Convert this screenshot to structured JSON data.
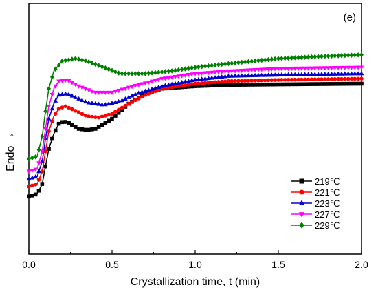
{
  "chart_data": {
    "type": "line",
    "panel_label": "(e)",
    "xlabel": "Crystallization time, t (min)",
    "ylabel": "Endo →",
    "xlim": [
      0,
      2.0
    ],
    "xticks": [
      "0.0",
      "0.5",
      "1.0",
      "1.5",
      "2.0"
    ],
    "ylim": [
      0,
      1
    ],
    "y_ticks_shown": false,
    "legend_position": "bottom-right",
    "series": [
      {
        "name": "219℃",
        "color": "#000000",
        "marker": "square",
        "points": [
          [
            0.0,
            0.23
          ],
          [
            0.05,
            0.24
          ],
          [
            0.08,
            0.28
          ],
          [
            0.1,
            0.35
          ],
          [
            0.12,
            0.42
          ],
          [
            0.15,
            0.48
          ],
          [
            0.18,
            0.52
          ],
          [
            0.21,
            0.53
          ],
          [
            0.25,
            0.52
          ],
          [
            0.3,
            0.5
          ],
          [
            0.35,
            0.495
          ],
          [
            0.4,
            0.5
          ],
          [
            0.5,
            0.54
          ],
          [
            0.6,
            0.6
          ],
          [
            0.7,
            0.64
          ],
          [
            0.8,
            0.66
          ],
          [
            1.0,
            0.67
          ],
          [
            1.2,
            0.675
          ],
          [
            1.5,
            0.677
          ],
          [
            2.0,
            0.68
          ]
        ]
      },
      {
        "name": "221℃",
        "color": "#ff0000",
        "marker": "circle",
        "points": [
          [
            0.0,
            0.27
          ],
          [
            0.05,
            0.28
          ],
          [
            0.08,
            0.33
          ],
          [
            0.1,
            0.41
          ],
          [
            0.12,
            0.49
          ],
          [
            0.15,
            0.55
          ],
          [
            0.18,
            0.58
          ],
          [
            0.22,
            0.59
          ],
          [
            0.27,
            0.575
          ],
          [
            0.35,
            0.55
          ],
          [
            0.42,
            0.545
          ],
          [
            0.5,
            0.56
          ],
          [
            0.6,
            0.6
          ],
          [
            0.7,
            0.635
          ],
          [
            0.8,
            0.66
          ],
          [
            1.0,
            0.68
          ],
          [
            1.2,
            0.69
          ],
          [
            1.5,
            0.695
          ],
          [
            2.0,
            0.7
          ]
        ]
      },
      {
        "name": "223℃",
        "color": "#0000cc",
        "marker": "triangle-up",
        "points": [
          [
            0.0,
            0.3
          ],
          [
            0.05,
            0.31
          ],
          [
            0.08,
            0.37
          ],
          [
            0.1,
            0.46
          ],
          [
            0.12,
            0.54
          ],
          [
            0.15,
            0.6
          ],
          [
            0.18,
            0.635
          ],
          [
            0.23,
            0.64
          ],
          [
            0.28,
            0.625
          ],
          [
            0.35,
            0.605
          ],
          [
            0.45,
            0.595
          ],
          [
            0.55,
            0.61
          ],
          [
            0.65,
            0.64
          ],
          [
            0.8,
            0.67
          ],
          [
            1.0,
            0.695
          ],
          [
            1.2,
            0.71
          ],
          [
            1.5,
            0.715
          ],
          [
            2.0,
            0.72
          ]
        ]
      },
      {
        "name": "227℃",
        "color": "#ff00ff",
        "marker": "triangle-down",
        "points": [
          [
            0.0,
            0.33
          ],
          [
            0.05,
            0.34
          ],
          [
            0.08,
            0.41
          ],
          [
            0.1,
            0.5
          ],
          [
            0.12,
            0.59
          ],
          [
            0.15,
            0.66
          ],
          [
            0.18,
            0.69
          ],
          [
            0.23,
            0.695
          ],
          [
            0.3,
            0.67
          ],
          [
            0.4,
            0.645
          ],
          [
            0.5,
            0.645
          ],
          [
            0.6,
            0.665
          ],
          [
            0.8,
            0.7
          ],
          [
            1.0,
            0.72
          ],
          [
            1.2,
            0.73
          ],
          [
            1.5,
            0.74
          ],
          [
            2.0,
            0.745
          ]
        ]
      },
      {
        "name": "229℃",
        "color": "#008000",
        "marker": "diamond",
        "points": [
          [
            0.0,
            0.38
          ],
          [
            0.05,
            0.39
          ],
          [
            0.08,
            0.47
          ],
          [
            0.1,
            0.57
          ],
          [
            0.12,
            0.66
          ],
          [
            0.15,
            0.73
          ],
          [
            0.2,
            0.77
          ],
          [
            0.28,
            0.78
          ],
          [
            0.35,
            0.77
          ],
          [
            0.45,
            0.745
          ],
          [
            0.55,
            0.72
          ],
          [
            0.7,
            0.72
          ],
          [
            0.85,
            0.73
          ],
          [
            1.0,
            0.745
          ],
          [
            1.2,
            0.76
          ],
          [
            1.5,
            0.78
          ],
          [
            1.8,
            0.79
          ],
          [
            2.0,
            0.795
          ]
        ]
      }
    ]
  }
}
